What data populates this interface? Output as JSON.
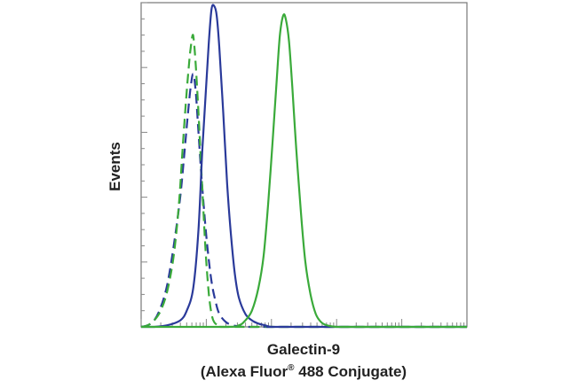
{
  "chart_data": {
    "type": "line",
    "title": "",
    "ylabel": "Events",
    "xlabel_line1": "Galectin-9",
    "xlabel_line2_pre": "(Alexa Fluor",
    "xlabel_line2_sup": "®",
    "xlabel_line2_post": " 488 Conjugate)",
    "xscale": "log",
    "xlim": [
      -1,
      4
    ],
    "ylim": [
      0,
      100
    ],
    "grid": false,
    "legend": "none",
    "tick_labels": "none",
    "series": [
      {
        "color": "#2a3a9a",
        "style": "dashed",
        "x": [
          -1.0,
          -0.9,
          -0.8,
          -0.7,
          -0.6,
          -0.5,
          -0.4,
          -0.33,
          -0.28,
          -0.24,
          -0.2,
          -0.16,
          -0.12,
          -0.08,
          -0.03,
          0.02,
          0.08,
          0.14,
          0.2,
          0.3,
          0.4,
          0.5,
          0.6,
          1.0,
          4.0
        ],
        "y": [
          0,
          0.5,
          2,
          6,
          13,
          25,
          40,
          55,
          66,
          74,
          78,
          72,
          60,
          48,
          35,
          24,
          14,
          8,
          4,
          1.5,
          0.5,
          0.2,
          0,
          0,
          0
        ]
      },
      {
        "color": "#3aaa3a",
        "style": "dashed",
        "x": [
          -1.0,
          -0.9,
          -0.8,
          -0.7,
          -0.6,
          -0.5,
          -0.42,
          -0.36,
          -0.31,
          -0.27,
          -0.24,
          -0.21,
          -0.19,
          -0.16,
          -0.12,
          -0.08,
          -0.04,
          0.0,
          0.04,
          0.08,
          0.12,
          0.18,
          0.25,
          1.0,
          4.0
        ],
        "y": [
          0,
          0.5,
          2,
          5,
          11,
          22,
          38,
          56,
          70,
          80,
          86,
          90,
          88,
          80,
          66,
          50,
          34,
          20,
          10,
          4,
          1.5,
          0.5,
          0,
          0,
          0
        ]
      },
      {
        "color": "#2a3a9a",
        "style": "solid",
        "x": [
          -1.0,
          -0.8,
          -0.6,
          -0.4,
          -0.3,
          -0.2,
          -0.12,
          -0.06,
          0.0,
          0.04,
          0.08,
          0.12,
          0.16,
          0.2,
          0.26,
          0.32,
          0.38,
          0.44,
          0.5,
          0.6,
          0.7,
          0.8,
          0.9,
          1.0,
          1.2,
          4.0
        ],
        "y": [
          0,
          0,
          0.5,
          2,
          5,
          12,
          30,
          55,
          75,
          88,
          98,
          99,
          96,
          86,
          66,
          44,
          28,
          16,
          9,
          4,
          2,
          1,
          0.5,
          0,
          0,
          0
        ]
      },
      {
        "color": "#3aaa3a",
        "style": "solid",
        "x": [
          -1.0,
          0.3,
          0.5,
          0.6,
          0.7,
          0.8,
          0.88,
          0.95,
          1.02,
          1.08,
          1.13,
          1.18,
          1.22,
          1.27,
          1.32,
          1.38,
          1.45,
          1.52,
          1.6,
          1.68,
          1.76,
          1.85,
          2.0,
          2.3,
          4.0
        ],
        "y": [
          0,
          0,
          0.5,
          2,
          5,
          12,
          22,
          38,
          58,
          76,
          90,
          96,
          95,
          88,
          74,
          55,
          36,
          20,
          10,
          4,
          1.5,
          0.5,
          0,
          0,
          0
        ]
      }
    ]
  }
}
